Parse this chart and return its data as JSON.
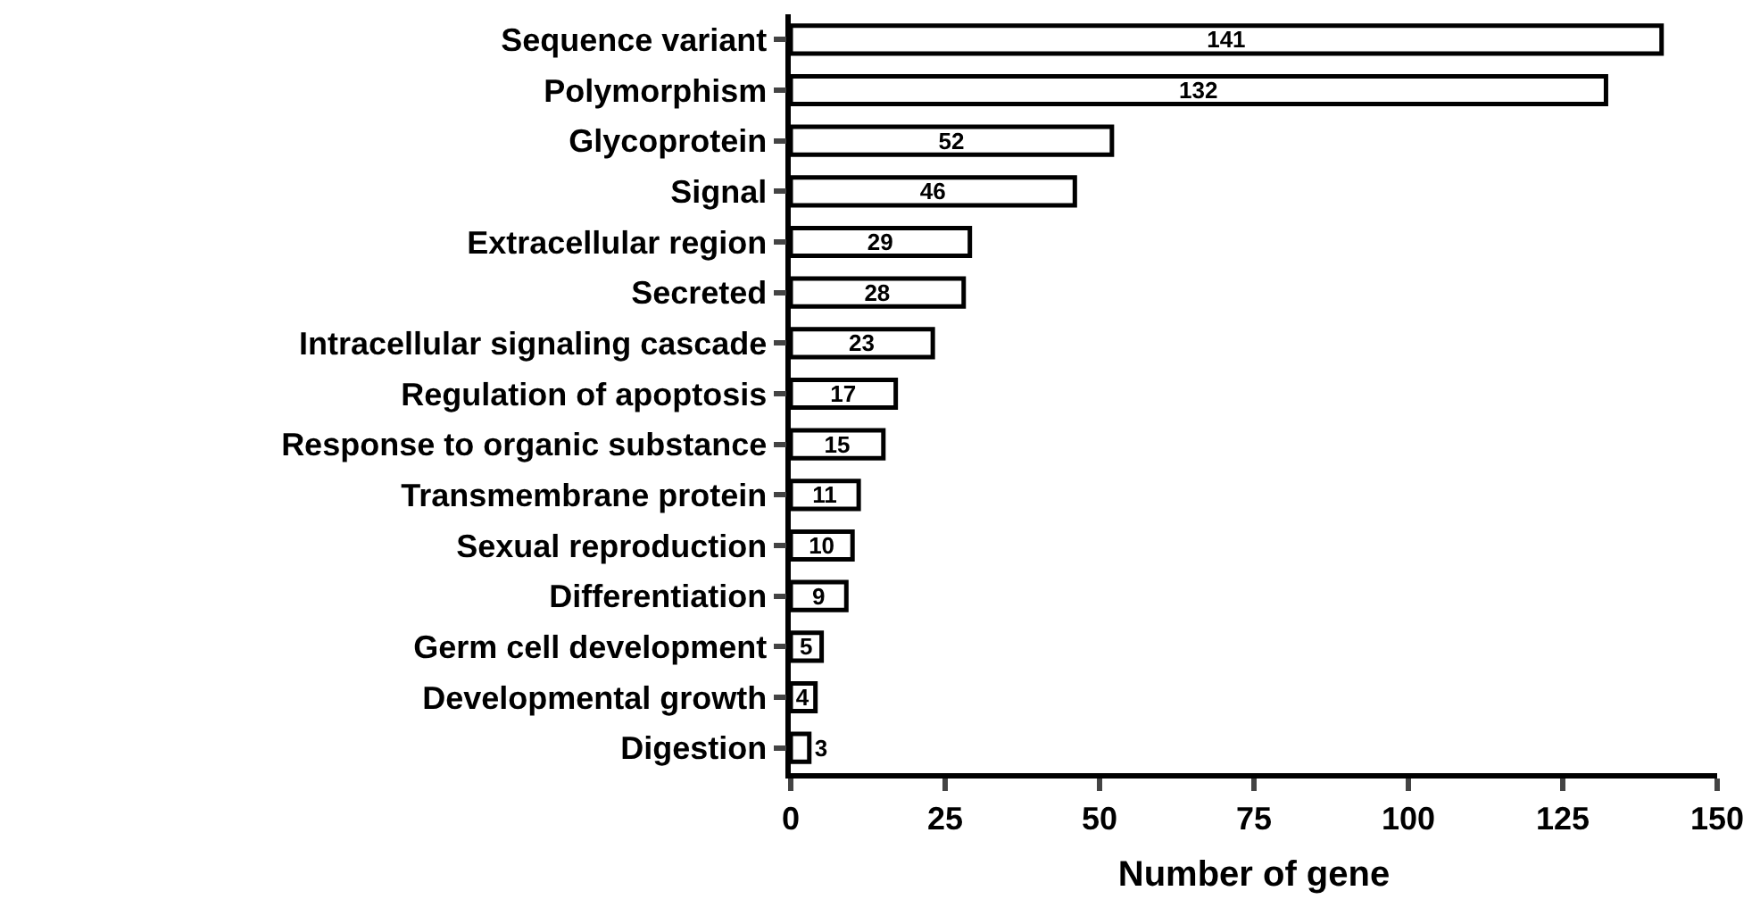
{
  "chart_data": {
    "type": "bar",
    "orientation": "horizontal",
    "xlabel": "Number of gene",
    "categories": [
      "Sequence variant",
      "Polymorphism",
      "Glycoprotein",
      "Signal",
      "Extracellular region",
      "Secreted",
      "Intracellular signaling cascade",
      "Regulation of apoptosis",
      "Response to organic substance",
      "Transmembrane protein",
      "Sexual reproduction",
      "Differentiation",
      "Germ cell development",
      "Developmental growth",
      "Digestion"
    ],
    "values": [
      141,
      132,
      52,
      46,
      29,
      28,
      23,
      17,
      15,
      11,
      10,
      9,
      5,
      4,
      3
    ],
    "color": "#ffffff",
    "xlim": [
      0,
      150
    ],
    "xticks": [
      0,
      25,
      50,
      75,
      100,
      125,
      150
    ],
    "data_labels": true
  }
}
